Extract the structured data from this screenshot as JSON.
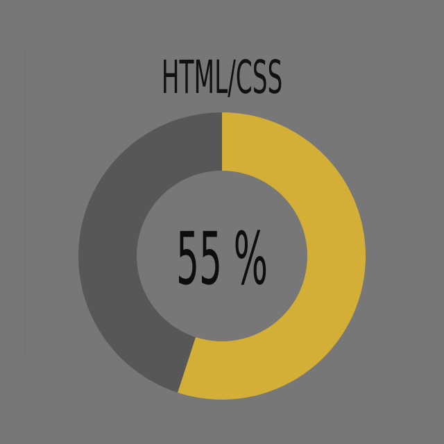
{
  "colors": {
    "background": "#777777",
    "filled": "#d4af37",
    "remaining": "#575757",
    "hole": "#777777",
    "text": "#111111"
  },
  "chart_data": {
    "type": "pie",
    "title": "HTML/CSS",
    "center_label": "55 %",
    "slices": [
      {
        "value": 55,
        "color": "#d4af37"
      },
      {
        "value": 45,
        "color": "#575757"
      }
    ]
  }
}
